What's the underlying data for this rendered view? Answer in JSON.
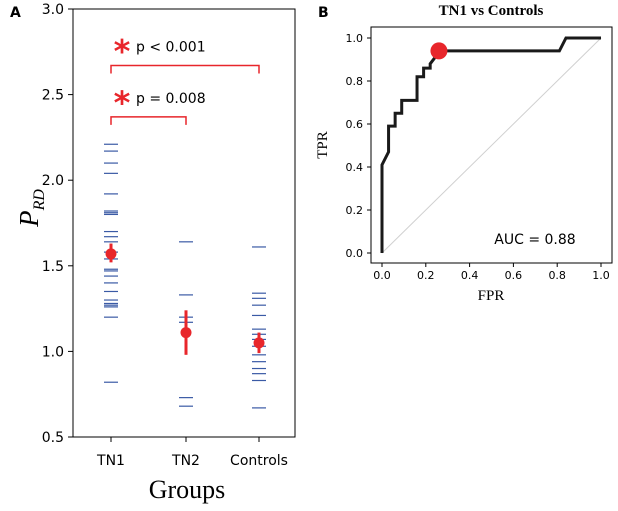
{
  "palette": {
    "red": "#e8262b",
    "blue": "#3a5aa5",
    "black": "#1a1a1a",
    "diag": "#d0d0d0"
  },
  "chart_data": [
    {
      "panel_label": "A",
      "type": "scatter",
      "xlabel": "Groups",
      "ylabel": "P",
      "ylabel_sub": "RD",
      "ylim": [
        0.5,
        3.0
      ],
      "yticks": [
        "0.5",
        "1.0",
        "1.5",
        "2.0",
        "2.5",
        "3.0"
      ],
      "categories": [
        "TN1",
        "TN2",
        "Controls"
      ],
      "points": [
        [
          2.21,
          2.17,
          2.1,
          2.04,
          1.92,
          1.82,
          1.81,
          1.8,
          1.7,
          1.67,
          1.64,
          1.58,
          1.54,
          1.48,
          1.47,
          1.44,
          1.4,
          1.35,
          1.3,
          1.28,
          1.27,
          1.26,
          1.2,
          0.82
        ],
        [
          1.64,
          1.33,
          1.2,
          1.17,
          0.73,
          0.68
        ],
        [
          1.61,
          1.34,
          1.31,
          1.27,
          1.21,
          1.13,
          1.1,
          1.07,
          1.03,
          0.98,
          0.94,
          0.9,
          0.87,
          0.83,
          0.67
        ]
      ],
      "means": [
        1.57,
        1.11,
        1.05
      ],
      "errors": [
        [
          1.52,
          1.63
        ],
        [
          0.98,
          1.24
        ],
        [
          0.99,
          1.11
        ]
      ],
      "annotations": [
        {
          "star": "*",
          "text": "p < 0.001",
          "from": 0,
          "to": 2,
          "y": 2.67
        },
        {
          "star": "*",
          "text": "p = 0.008",
          "from": 0,
          "to": 1,
          "y": 2.37
        }
      ]
    },
    {
      "panel_label": "B",
      "type": "line",
      "title": "TN1 vs Controls",
      "xlabel": "FPR",
      "ylabel": "TPR",
      "xlim": [
        0,
        1
      ],
      "ylim": [
        0,
        1
      ],
      "xticks": [
        "0.0",
        "0.2",
        "0.4",
        "0.6",
        "0.8",
        "1.0"
      ],
      "yticks": [
        "0.0",
        "0.2",
        "0.4",
        "0.6",
        "0.8",
        "1.0"
      ],
      "roc": {
        "fpr": [
          0,
          0,
          0.03,
          0.03,
          0.06,
          0.06,
          0.09,
          0.09,
          0.12,
          0.12,
          0.16,
          0.16,
          0.19,
          0.19,
          0.22,
          0.22,
          0.25,
          0.26,
          0.5,
          0.81,
          0.84,
          1.0
        ],
        "tpr": [
          0,
          0.41,
          0.47,
          0.59,
          0.59,
          0.65,
          0.65,
          0.71,
          0.71,
          0.71,
          0.71,
          0.82,
          0.82,
          0.86,
          0.86,
          0.88,
          0.92,
          0.94,
          0.94,
          0.94,
          1.0,
          1.0
        ]
      },
      "marker": {
        "fpr": 0.26,
        "tpr": 0.94
      },
      "auc_text": "AUC = 0.88"
    }
  ]
}
